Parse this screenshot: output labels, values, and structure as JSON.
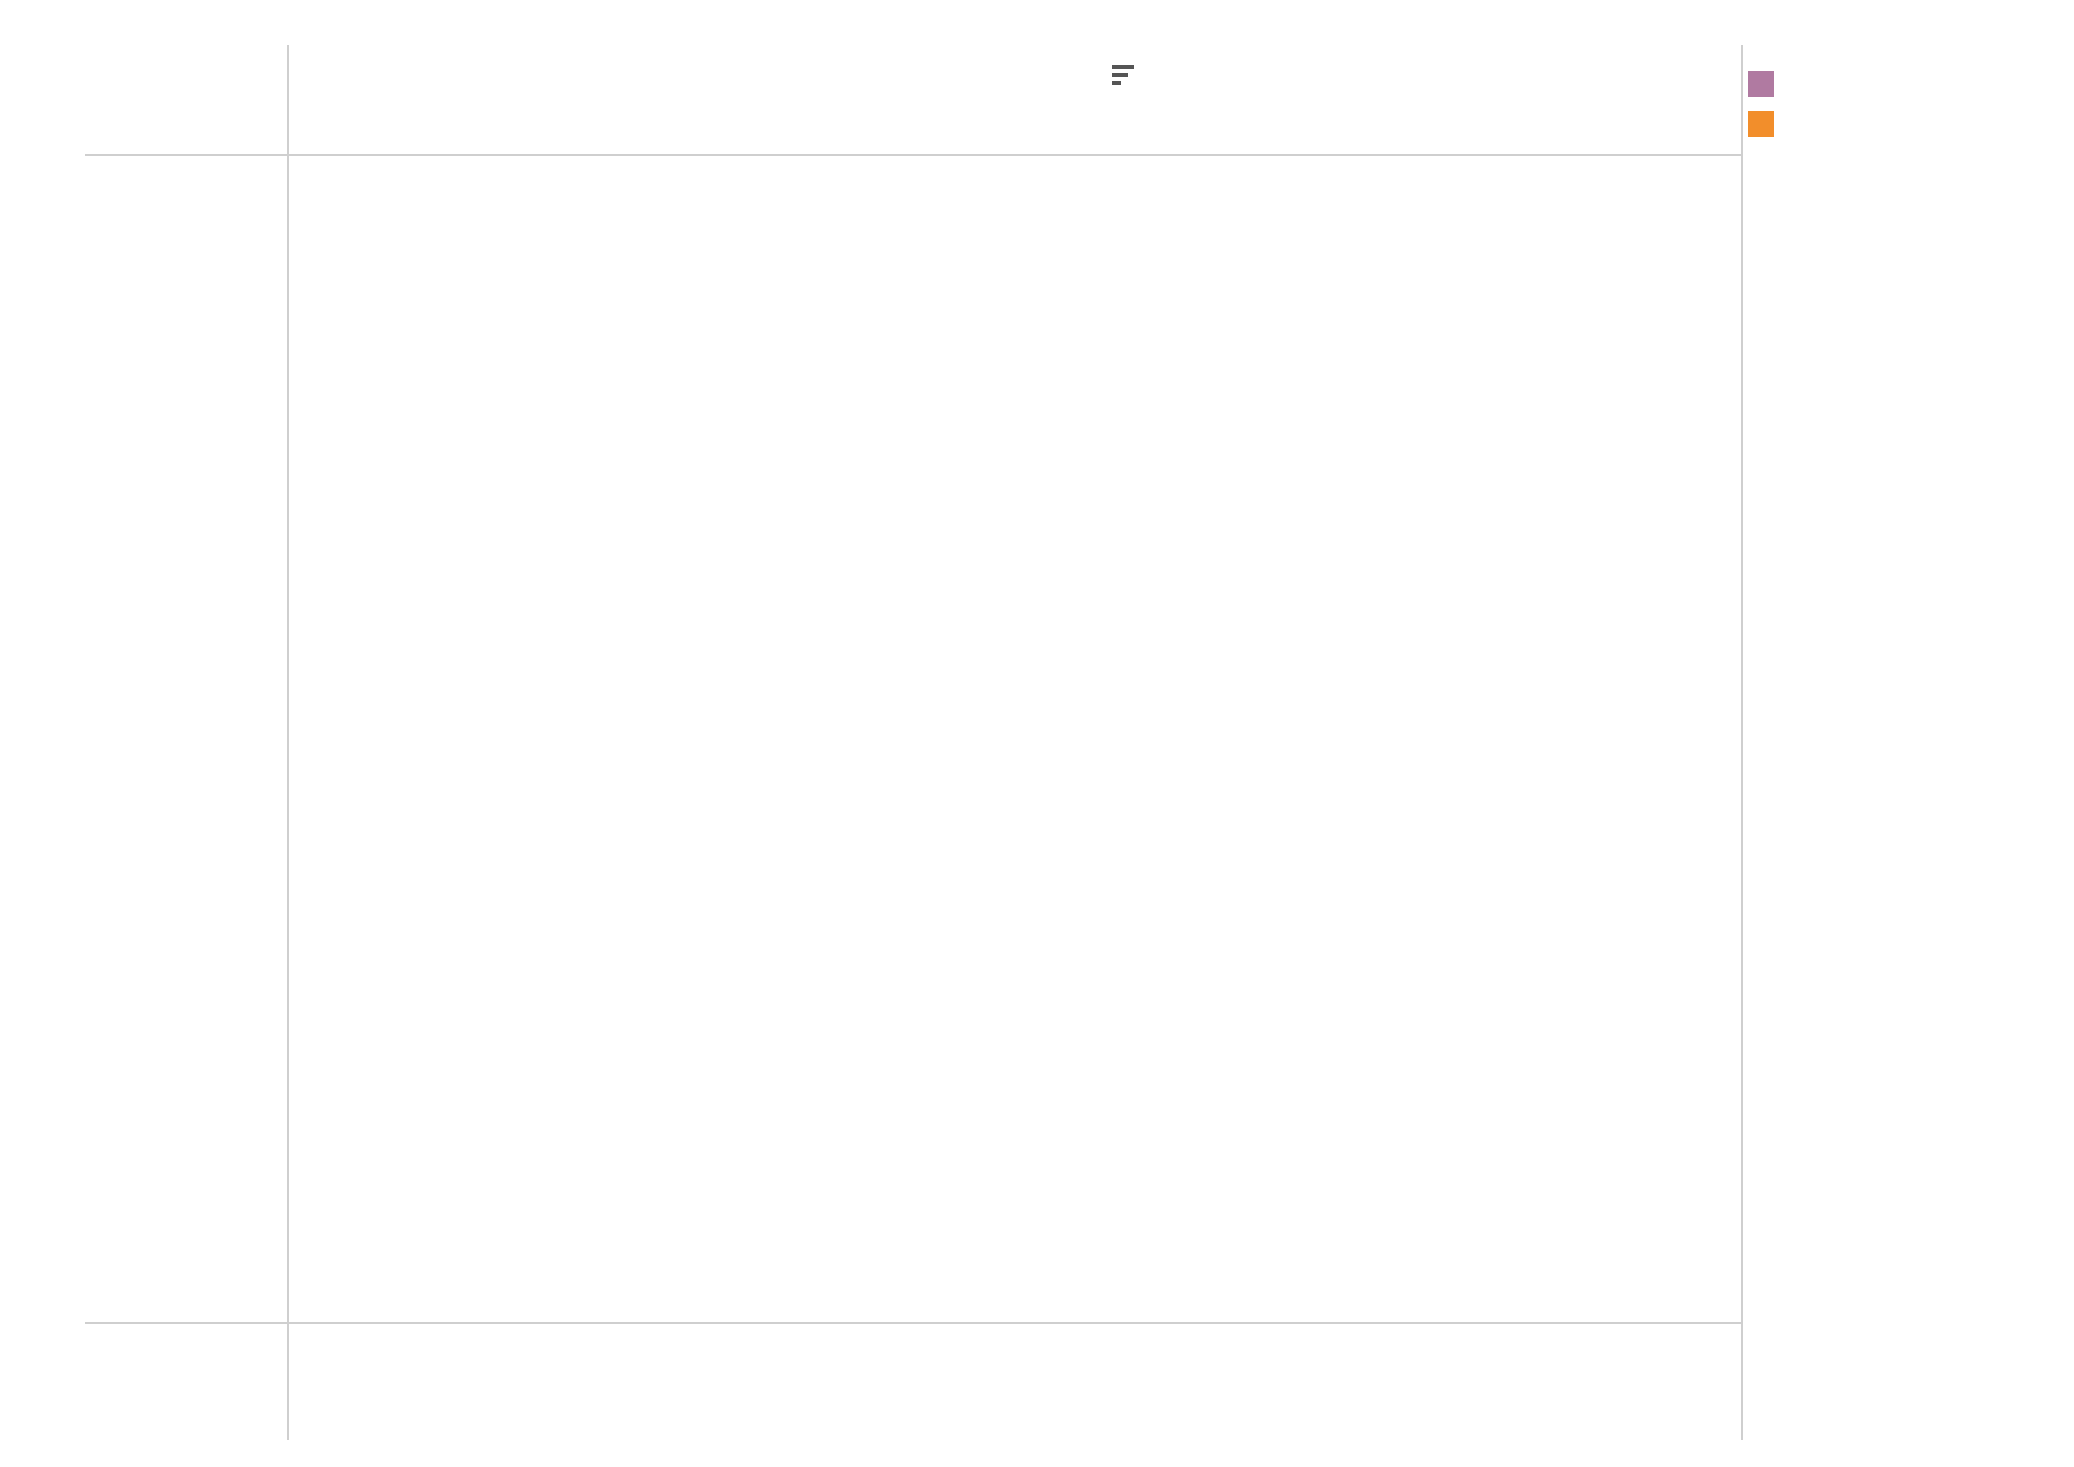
{
  "chart_data": {
    "type": "bar",
    "title": "",
    "row_header": "",
    "legend_title": "",
    "legend_position": "right",
    "grid": true,
    "categories": [],
    "series": [
      {
        "name": "",
        "kind": "bar",
        "axis": "bottom",
        "color": "",
        "values": []
      },
      {
        "name": "",
        "kind": "line",
        "axis": "top",
        "color": "",
        "values": []
      }
    ],
    "bottom_axis": {
      "label": "",
      "ticks": [],
      "range": []
    },
    "top_axis": {
      "label": "",
      "ticks": [],
      "range": []
    }
  }
}
